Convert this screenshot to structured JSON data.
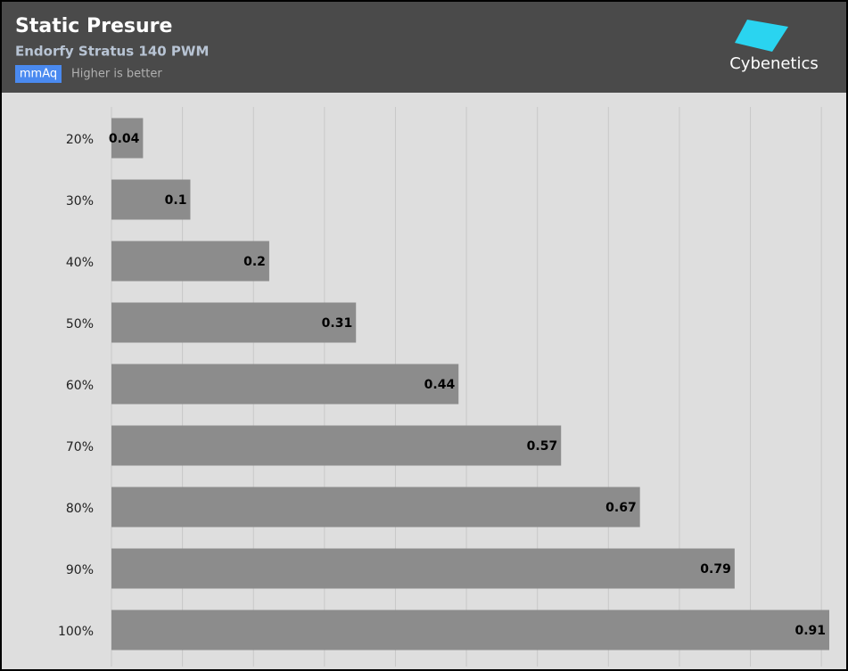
{
  "chart_data": {
    "type": "hbar",
    "title": "Static Presure",
    "subtitle": "Endorfy Stratus 140 PWM",
    "unit": "mmAq",
    "note": "Higher is better",
    "brand": "Cybenetics",
    "categories": [
      "20%",
      "30%",
      "40%",
      "50%",
      "60%",
      "70%",
      "80%",
      "90%",
      "100%"
    ],
    "values": [
      0.04,
      0.1,
      0.2,
      0.31,
      0.44,
      0.57,
      0.67,
      0.79,
      0.91
    ],
    "color": "#8c8c8c",
    "xlim": [
      0,
      0.91
    ],
    "xticks": [
      0,
      0.09,
      0.18,
      0.27,
      0.36,
      0.45,
      0.54,
      0.63,
      0.72,
      0.81,
      0.9
    ],
    "grid": true
  }
}
